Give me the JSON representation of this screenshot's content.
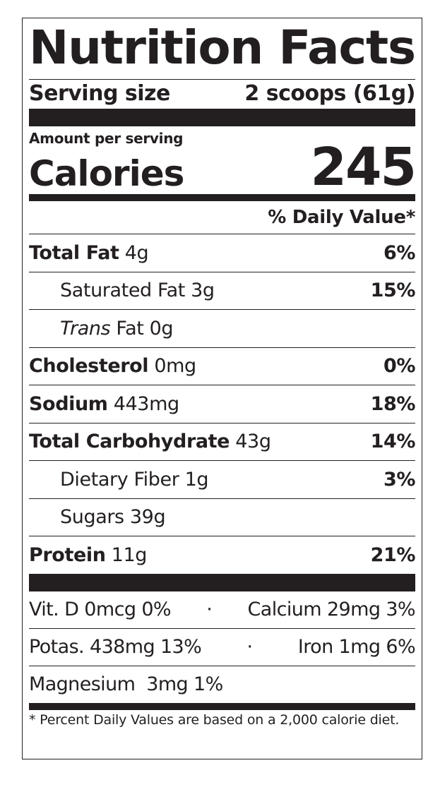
{
  "title": "Nutrition Facts",
  "serving": {
    "label": "Serving size",
    "value": "2 scoops (61g)"
  },
  "amount_label": "Amount per serving",
  "calories": {
    "label": "Calories",
    "value": "245"
  },
  "daily_value_header": "% Daily Value*",
  "nutrients": [
    {
      "name": "Total Fat",
      "amount": "4g",
      "dv": "6%",
      "bold": true,
      "indent": false
    },
    {
      "name": "Saturated Fat",
      "amount": "3g",
      "dv": "15%",
      "bold": false,
      "indent": true
    },
    {
      "name_italic": "Trans",
      "name": "Fat",
      "amount": "0g",
      "dv": "",
      "bold": false,
      "indent": true
    },
    {
      "name": "Cholesterol",
      "amount": "0mg",
      "dv": "0%",
      "bold": true,
      "indent": false
    },
    {
      "name": "Sodium",
      "amount": "443mg",
      "dv": "18%",
      "bold": true,
      "indent": false
    },
    {
      "name": "Total Carbohydrate",
      "amount": "43g",
      "dv": "14%",
      "bold": true,
      "indent": false
    },
    {
      "name": "Dietary Fiber",
      "amount": "1g",
      "dv": "3%",
      "bold": false,
      "indent": true
    },
    {
      "name": "Sugars",
      "amount": "39g",
      "dv": "",
      "bold": false,
      "indent": true
    },
    {
      "name": "Protein",
      "amount": "11g",
      "dv": "21%",
      "bold": true,
      "indent": false
    }
  ],
  "micros": [
    {
      "left": "Vit. D 0mcg 0%",
      "sep": "·",
      "right": "Calcium 29mg 3%"
    },
    {
      "left": "Potas. 438mg 13%",
      "sep": "·",
      "right": "Iron 1mg 6%"
    },
    {
      "left": "Magnesium  3mg 1%",
      "sep": "",
      "right": ""
    }
  ],
  "footnote": "* Percent Daily Values are based on a 2,000 calorie diet.",
  "colors": {
    "ink": "#231f20",
    "background": "#ffffff"
  }
}
